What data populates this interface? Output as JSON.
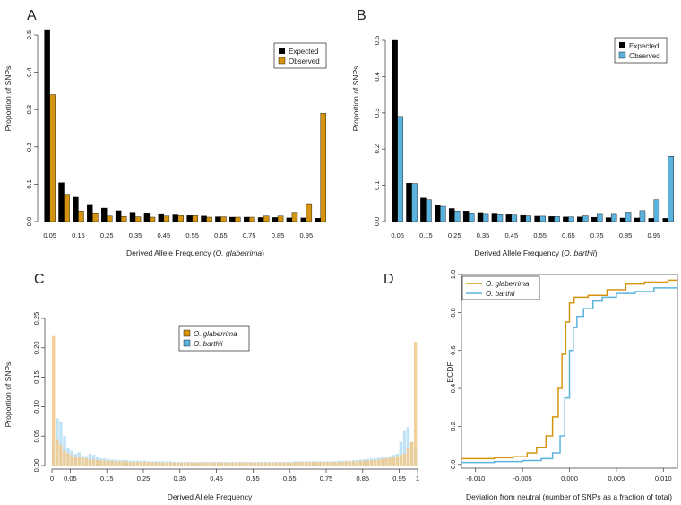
{
  "colors": {
    "expected": "#000000",
    "gla": "#D4940F",
    "bar": "#5BB3DD",
    "gla_light": "#F2C98A",
    "bar_light": "#A9D8F0",
    "axis": "#333333"
  },
  "panels": {
    "A": {
      "letter": "A",
      "ylabel": "Proportion of SNPs",
      "xlabel_pre": "Derived Allele Frequency (",
      "xlabel_species": "O. glaberrima",
      "xlabel_post": ")",
      "legend": [
        "Expected",
        "Observed"
      ]
    },
    "B": {
      "letter": "B",
      "ylabel": "Proportion of SNPs",
      "xlabel_pre": "Derived Allele Frequency (",
      "xlabel_species": "O. barthii",
      "xlabel_post": ")",
      "legend": [
        "Expected",
        "Observed"
      ]
    },
    "C": {
      "letter": "C",
      "ylabel": "Proportion of SNPs",
      "xlabel": "Derived Allele Frequency",
      "legend": [
        "O. glaberrima",
        "O. barthii"
      ]
    },
    "D": {
      "letter": "D",
      "ylabel": "ECDF",
      "xlabel": "Deviation from neutral (number of SNPs as a fraction of total)",
      "legend": [
        "O. glaberrima",
        "O. barthii"
      ]
    }
  },
  "chart_data": [
    {
      "id": "A",
      "type": "bar",
      "categories": [
        "0.05",
        "0.10",
        "0.15",
        "0.20",
        "0.25",
        "0.30",
        "0.35",
        "0.40",
        "0.45",
        "0.50",
        "0.55",
        "0.60",
        "0.65",
        "0.70",
        "0.75",
        "0.80",
        "0.85",
        "0.90",
        "0.95",
        "1.00"
      ],
      "tick_labels": [
        "0.05",
        "0.15",
        "0.25",
        "0.35",
        "0.45",
        "0.55",
        "0.65",
        "0.75",
        "0.85",
        "0.95"
      ],
      "series": [
        {
          "name": "Expected",
          "values": [
            0.52,
            0.104,
            0.065,
            0.046,
            0.036,
            0.029,
            0.025,
            0.021,
            0.019,
            0.018,
            0.016,
            0.015,
            0.013,
            0.012,
            0.012,
            0.011,
            0.011,
            0.01,
            0.01,
            0.009
          ]
        },
        {
          "name": "Observed",
          "values": [
            0.34,
            0.073,
            0.028,
            0.021,
            0.015,
            0.014,
            0.013,
            0.012,
            0.015,
            0.016,
            0.016,
            0.012,
            0.013,
            0.012,
            0.012,
            0.015,
            0.015,
            0.025,
            0.048,
            0.29
          ]
        }
      ],
      "ylim": [
        0,
        0.5
      ],
      "yticks": [
        "0.0",
        "0.1",
        "0.2",
        "0.3",
        "0.4",
        "0.5"
      ]
    },
    {
      "id": "B",
      "type": "bar",
      "categories": [
        "0.05",
        "0.10",
        "0.15",
        "0.20",
        "0.25",
        "0.30",
        "0.35",
        "0.40",
        "0.45",
        "0.50",
        "0.55",
        "0.60",
        "0.65",
        "0.70",
        "0.75",
        "0.80",
        "0.85",
        "0.90",
        "0.95",
        "1.00"
      ],
      "tick_labels": [
        "0.05",
        "0.15",
        "0.25",
        "0.35",
        "0.45",
        "0.55",
        "0.65",
        "0.75",
        "0.85",
        "0.95"
      ],
      "series": [
        {
          "name": "Expected",
          "values": [
            0.5,
            0.106,
            0.065,
            0.046,
            0.036,
            0.029,
            0.025,
            0.021,
            0.019,
            0.017,
            0.015,
            0.014,
            0.013,
            0.013,
            0.012,
            0.011,
            0.01,
            0.01,
            0.009,
            0.009
          ]
        },
        {
          "name": "Observed",
          "values": [
            0.29,
            0.105,
            0.06,
            0.042,
            0.029,
            0.022,
            0.02,
            0.019,
            0.018,
            0.016,
            0.015,
            0.014,
            0.013,
            0.016,
            0.02,
            0.02,
            0.026,
            0.03,
            0.06,
            0.18
          ]
        }
      ],
      "ylim": [
        0,
        0.5
      ],
      "yticks": [
        "0.0",
        "0.1",
        "0.2",
        "0.3",
        "0.4",
        "0.5"
      ]
    },
    {
      "id": "C",
      "type": "bar",
      "bins": 100,
      "xlim": [
        0,
        1
      ],
      "tick_values": [
        0,
        0.05,
        0.15,
        0.25,
        0.35,
        0.45,
        0.55,
        0.65,
        0.75,
        0.85,
        0.95,
        1
      ],
      "tick_labels": [
        "0",
        "0.05",
        "0.15",
        "0.25",
        "0.35",
        "0.45",
        "0.55",
        "0.65",
        "0.75",
        "0.85",
        "0.95",
        "1"
      ],
      "series": [
        {
          "name": "O. glaberrima",
          "values": [
            0.22,
            0.045,
            0.035,
            0.025,
            0.02,
            0.018,
            0.015,
            0.014,
            0.013,
            0.012,
            0.01,
            0.01,
            0.009,
            0.009,
            0.008,
            0.008,
            0.008,
            0.007,
            0.007,
            0.007,
            0.007,
            0.006,
            0.006,
            0.006,
            0.006,
            0.006,
            0.006,
            0.006,
            0.005,
            0.005,
            0.005,
            0.005,
            0.005,
            0.005,
            0.005,
            0.005,
            0.005,
            0.005,
            0.005,
            0.005,
            0.005,
            0.005,
            0.005,
            0.005,
            0.005,
            0.005,
            0.005,
            0.005,
            0.005,
            0.005,
            0.005,
            0.005,
            0.005,
            0.005,
            0.005,
            0.005,
            0.005,
            0.005,
            0.005,
            0.005,
            0.005,
            0.005,
            0.005,
            0.005,
            0.005,
            0.005,
            0.005,
            0.006,
            0.006,
            0.006,
            0.006,
            0.006,
            0.006,
            0.006,
            0.006,
            0.006,
            0.006,
            0.006,
            0.006,
            0.006,
            0.007,
            0.007,
            0.007,
            0.007,
            0.008,
            0.008,
            0.008,
            0.009,
            0.009,
            0.01,
            0.011,
            0.012,
            0.013,
            0.014,
            0.016,
            0.018,
            0.02,
            0.03,
            0.04,
            0.21
          ]
        },
        {
          "name": "O. barthii",
          "values": [
            0.042,
            0.08,
            0.075,
            0.05,
            0.03,
            0.025,
            0.02,
            0.022,
            0.016,
            0.016,
            0.02,
            0.018,
            0.014,
            0.012,
            0.012,
            0.011,
            0.01,
            0.01,
            0.009,
            0.009,
            0.009,
            0.008,
            0.008,
            0.008,
            0.008,
            0.008,
            0.007,
            0.007,
            0.007,
            0.007,
            0.007,
            0.007,
            0.007,
            0.006,
            0.006,
            0.006,
            0.006,
            0.006,
            0.006,
            0.006,
            0.006,
            0.006,
            0.006,
            0.006,
            0.006,
            0.006,
            0.006,
            0.006,
            0.006,
            0.006,
            0.006,
            0.006,
            0.006,
            0.006,
            0.006,
            0.006,
            0.006,
            0.006,
            0.006,
            0.006,
            0.006,
            0.006,
            0.006,
            0.006,
            0.006,
            0.006,
            0.007,
            0.007,
            0.007,
            0.007,
            0.007,
            0.007,
            0.007,
            0.007,
            0.007,
            0.007,
            0.007,
            0.007,
            0.008,
            0.008,
            0.008,
            0.008,
            0.009,
            0.009,
            0.01,
            0.01,
            0.011,
            0.012,
            0.012,
            0.013,
            0.014,
            0.015,
            0.016,
            0.018,
            0.02,
            0.04,
            0.06,
            0.065,
            0.04,
            0.03
          ]
        }
      ],
      "ylim": [
        0,
        0.25
      ],
      "yticks": [
        "0.00",
        "0.05",
        "0.10",
        "0.15",
        "0.20",
        "0.25"
      ]
    },
    {
      "id": "D",
      "type": "line",
      "xlim": [
        -0.0115,
        0.0115
      ],
      "ylim": [
        -0.02,
        1.0
      ],
      "xticks": [
        "-0.010",
        "-0.005",
        "0.000",
        "0.005",
        "0.010"
      ],
      "yticks": [
        "0.0",
        "0.2",
        "0.4",
        "0.6",
        "0.8",
        "1.0"
      ],
      "series": [
        {
          "name": "O. glaberrima",
          "x": [
            -0.0115,
            -0.008,
            -0.006,
            -0.0045,
            -0.0035,
            -0.0025,
            -0.0018,
            -0.0012,
            -0.0008,
            -0.0004,
            0.0,
            0.0005,
            0.001,
            0.002,
            0.004,
            0.006,
            0.008,
            0.0105,
            0.0115
          ],
          "y": [
            0.03,
            0.035,
            0.04,
            0.06,
            0.09,
            0.15,
            0.25,
            0.4,
            0.58,
            0.75,
            0.85,
            0.88,
            0.88,
            0.89,
            0.92,
            0.95,
            0.96,
            0.97,
            0.97
          ]
        },
        {
          "name": "O. barthii",
          "x": [
            -0.0115,
            -0.008,
            -0.005,
            -0.003,
            -0.0018,
            -0.001,
            -0.0005,
            0.0,
            0.0004,
            0.0008,
            0.0015,
            0.0025,
            0.0035,
            0.005,
            0.007,
            0.009,
            0.0115
          ],
          "y": [
            0.01,
            0.015,
            0.02,
            0.03,
            0.06,
            0.15,
            0.35,
            0.6,
            0.72,
            0.78,
            0.82,
            0.86,
            0.88,
            0.9,
            0.91,
            0.93,
            0.94
          ]
        }
      ]
    }
  ]
}
